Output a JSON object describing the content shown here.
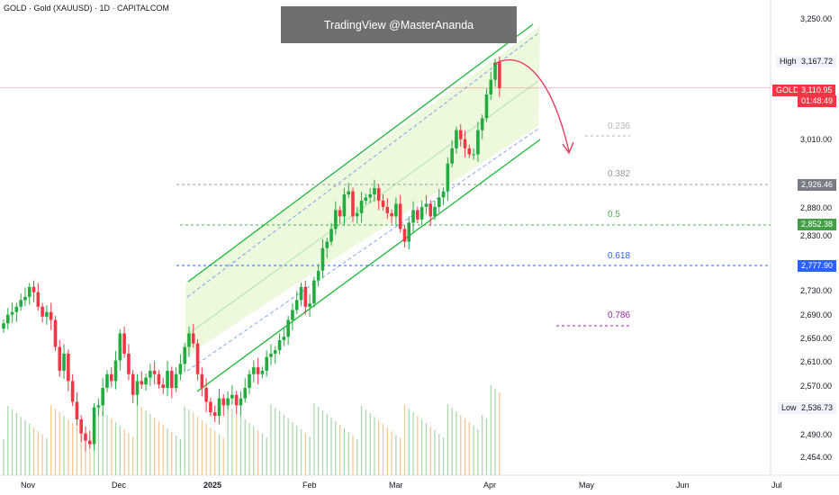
{
  "header": {
    "title": "GOLD · Gold (XAUUSD) · 1D · CAPITALCOM"
  },
  "watermark": {
    "text": "TradingView @MasterAnanda"
  },
  "price_axis": {
    "ticks": [
      "3,250.00",
      "3,010.00",
      "2,880.00",
      "2,830.00",
      "2,730.00",
      "2,690.00",
      "2,650.00",
      "2,610.00",
      "2,570.00",
      "2,490.00",
      "2,454.00"
    ]
  },
  "time_axis": {
    "labels": [
      "Nov",
      "Dec",
      "2025",
      "Feb",
      "Mar",
      "Apr",
      "May",
      "Jun",
      "Jul"
    ]
  },
  "tags": {
    "high_label": "High",
    "high_value": "3,167.72",
    "low_label": "Low",
    "low_value": "2,536.73",
    "symbol": "GOLD",
    "last_price": "3,110.95",
    "countdown": "01:48:49",
    "fib382_price": "2,926.46",
    "fib50_price": "2,852.38",
    "fib618_price": "2,777.90"
  },
  "fib_levels": [
    {
      "label": "0.236",
      "color": "#b2b5be"
    },
    {
      "label": "0.382",
      "color": "#9598a1"
    },
    {
      "label": "0.5",
      "color": "#4caf50"
    },
    {
      "label": "0.618",
      "color": "#2962ff"
    },
    {
      "label": "0.786",
      "color": "#9c27b0"
    }
  ],
  "colors": {
    "up": "#22ab3e",
    "down": "#f23645",
    "channel": "#18b935",
    "channel_fill": "#e9f7d4",
    "mid": "#2962ff",
    "arrow": "#e8315a",
    "vol_up": "#a5d6a7",
    "vol_down": "#f7c48b"
  },
  "chart_data": {
    "type": "candlestick",
    "symbol": "Gold (XAUUSD)",
    "interval": "1D",
    "y_scale": "log",
    "ylim": [
      2420,
      3300
    ],
    "x_labels": [
      "Nov",
      "Dec",
      "2025",
      "Feb",
      "Mar",
      "Apr",
      "May",
      "Jun",
      "Jul"
    ],
    "high": 3167.72,
    "low": 2536.73,
    "last": 3110.95,
    "fibonacci": [
      {
        "level": 0.236,
        "price": 3019
      },
      {
        "level": 0.382,
        "price": 2926.46
      },
      {
        "level": 0.5,
        "price": 2852.38
      },
      {
        "level": 0.618,
        "price": 2777.9
      },
      {
        "level": 0.786,
        "price": 2674
      }
    ],
    "closes": [
      2735,
      2748,
      2752,
      2760,
      2770,
      2775,
      2790,
      2782,
      2760,
      2745,
      2752,
      2740,
      2700,
      2665,
      2690,
      2650,
      2620,
      2595,
      2575,
      2565,
      2560,
      2612,
      2615,
      2640,
      2660,
      2650,
      2680,
      2720,
      2690,
      2660,
      2630,
      2650,
      2645,
      2655,
      2665,
      2660,
      2645,
      2640,
      2665,
      2640,
      2660,
      2675,
      2700,
      2720,
      2705,
      2660,
      2640,
      2620,
      2605,
      2600,
      2625,
      2615,
      2625,
      2630,
      2615,
      2625,
      2640,
      2660,
      2670,
      2660,
      2665,
      2685,
      2690,
      2695,
      2710,
      2715,
      2740,
      2755,
      2770,
      2790,
      2760,
      2765,
      2800,
      2815,
      2850,
      2860,
      2880,
      2910,
      2900,
      2935,
      2940,
      2900,
      2905,
      2925,
      2930,
      2935,
      2945,
      2925,
      2915,
      2905,
      2900,
      2920,
      2880,
      2860,
      2890,
      2910,
      2895,
      2915,
      2920,
      2900,
      2915,
      2930,
      2940,
      2985,
      3010,
      3040,
      3025,
      3010,
      3000,
      3000,
      3040,
      3060,
      3100,
      3125,
      3155,
      3110.95
    ]
  }
}
